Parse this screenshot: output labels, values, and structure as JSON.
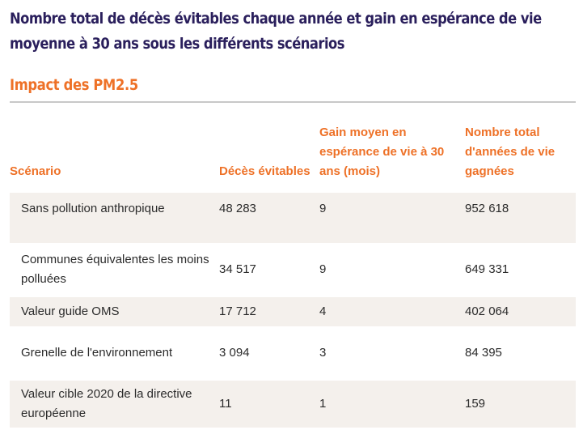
{
  "title_lines": [
    "Nombre total de décès évitables chaque année et gain en espérance de vie",
    "moyenne à 30 ans sous les différents scénarios"
  ],
  "section_title": "Impact des PM2.5",
  "table": {
    "headers": [
      "Scénario",
      "Décès évitables",
      "Gain moyen en espérance de vie à 30 ans (mois)",
      "Nombre total d'années de vie gagnées"
    ],
    "rows": [
      [
        "Sans pollution anthropique",
        "48 283",
        "9",
        "952 618"
      ],
      [
        "Communes équivalentes les moins polluées",
        "34 517",
        "9",
        "649 331"
      ],
      [
        "Valeur guide OMS",
        "17 712",
        "4",
        "402 064"
      ],
      [
        "Grenelle de l'environnement",
        "3 094",
        "3",
        "84 395"
      ],
      [
        "Valeur cible 2020 de la directive européenne",
        "11",
        "1",
        "159"
      ]
    ]
  },
  "colors": {
    "title": "#2a1f5c",
    "accent": "#ee7127",
    "row_shade": "#f4f0ec",
    "text": "#2b2b2b",
    "rule": "#c8c8c8"
  }
}
